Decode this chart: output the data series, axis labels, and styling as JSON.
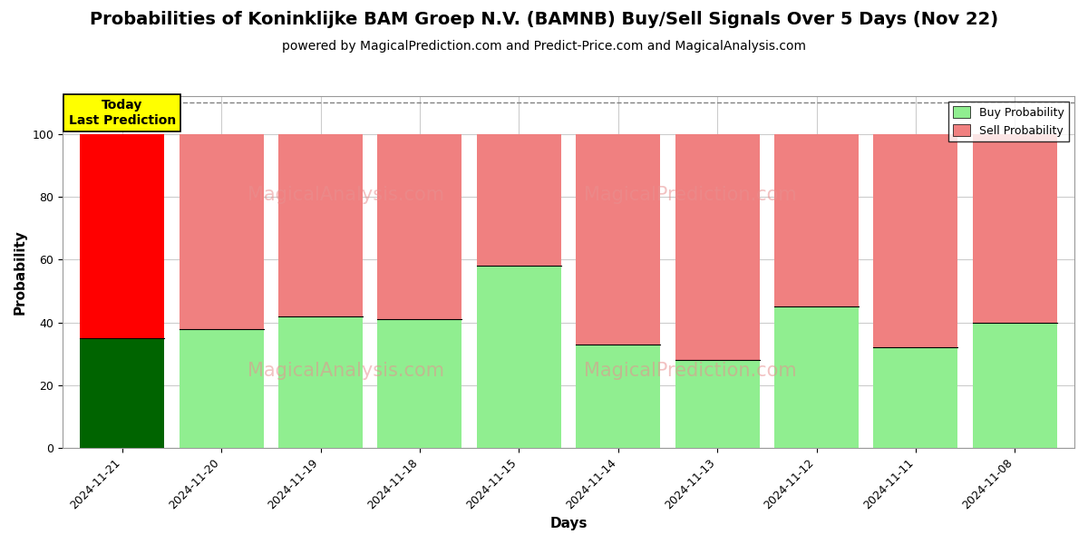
{
  "title": "Probabilities of Koninklijke BAM Groep N.V. (BAMNB) Buy/Sell Signals Over 5 Days (Nov 22)",
  "subtitle": "powered by MagicalPrediction.com and Predict-Price.com and MagicalAnalysis.com",
  "xlabel": "Days",
  "ylabel": "Probability",
  "categories": [
    "2024-11-21",
    "2024-11-20",
    "2024-11-19",
    "2024-11-18",
    "2024-11-15",
    "2024-11-14",
    "2024-11-13",
    "2024-11-12",
    "2024-11-11",
    "2024-11-08"
  ],
  "buy_values": [
    35,
    38,
    42,
    41,
    58,
    33,
    28,
    45,
    32,
    40
  ],
  "sell_values": [
    65,
    62,
    58,
    59,
    42,
    67,
    72,
    55,
    68,
    60
  ],
  "buy_colors": [
    "#006400",
    "#90EE90",
    "#90EE90",
    "#90EE90",
    "#90EE90",
    "#90EE90",
    "#90EE90",
    "#90EE90",
    "#90EE90",
    "#90EE90"
  ],
  "sell_colors": [
    "#FF0000",
    "#F08080",
    "#F08080",
    "#F08080",
    "#F08080",
    "#F08080",
    "#F08080",
    "#F08080",
    "#F08080",
    "#F08080"
  ],
  "today_annotation": "Today\nLast Prediction",
  "ylim": [
    0,
    112
  ],
  "dashed_line_y": 110,
  "legend_buy_color": "#90EE90",
  "legend_sell_color": "#F08080",
  "legend_buy_label": "Buy Probability",
  "legend_sell_label": "Sell Probability",
  "watermark_color": "#E89090",
  "background_color": "#ffffff",
  "grid_color": "#cccccc",
  "title_fontsize": 14,
  "subtitle_fontsize": 10,
  "axis_label_fontsize": 11,
  "tick_fontsize": 9,
  "bar_width": 0.85
}
